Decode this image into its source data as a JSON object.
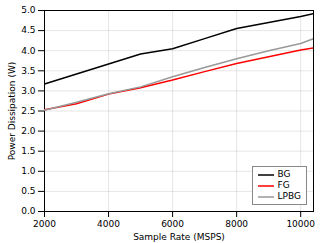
{
  "chart_data": {
    "type": "line",
    "xlabel": "Sample Rate (MSPS)",
    "ylabel": "Power Dissipation (W)",
    "x": [
      2000,
      3000,
      4000,
      5000,
      6000,
      7000,
      8000,
      9000,
      10000,
      10400
    ],
    "series": [
      {
        "name": "BG",
        "color": "#000000",
        "values": [
          3.17,
          3.42,
          3.67,
          3.92,
          4.05,
          4.3,
          4.55,
          4.7,
          4.85,
          4.92
        ]
      },
      {
        "name": "FG",
        "color": "#ff0000",
        "values": [
          2.53,
          2.68,
          2.92,
          3.08,
          3.27,
          3.48,
          3.68,
          3.85,
          4.02,
          4.07
        ]
      },
      {
        "name": "LPBG",
        "color": "#999999",
        "values": [
          2.52,
          2.72,
          2.93,
          3.1,
          3.35,
          3.58,
          3.8,
          4.0,
          4.18,
          4.3
        ]
      }
    ],
    "xlim": [
      2000,
      10400
    ],
    "ylim": [
      0,
      5
    ],
    "xticks": [
      2000,
      4000,
      6000,
      8000,
      10000
    ],
    "yticks": [
      {
        "value": 0,
        "label": "0.0"
      },
      0.5,
      {
        "value": 1,
        "label": "1.0"
      },
      1.5,
      {
        "value": 2,
        "label": "2.0"
      },
      2.5,
      {
        "value": 3,
        "label": "3.0"
      },
      3.5,
      {
        "value": 4,
        "label": "4.0"
      },
      4.5,
      {
        "value": 5,
        "label": "5.0"
      }
    ],
    "grid": true,
    "legend": "lower right"
  }
}
